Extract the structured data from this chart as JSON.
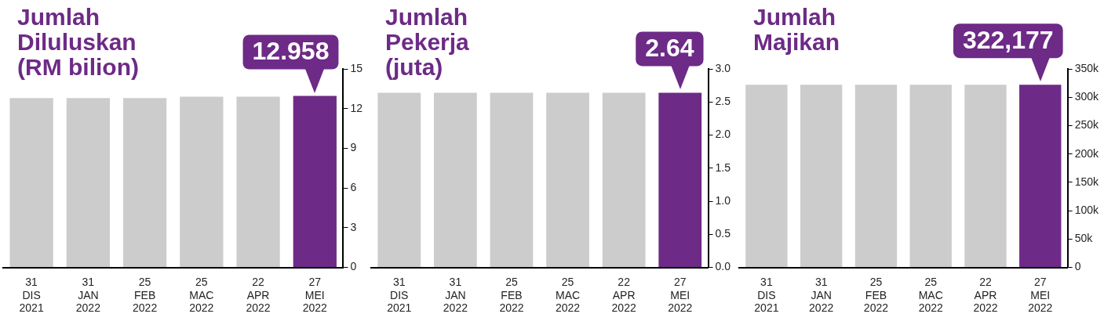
{
  "chart_data": [
    {
      "type": "bar",
      "title": "Jumlah\nDiluluskan\n(RM bilion)",
      "categories": [
        "31\nDIS\n2021",
        "31\nJAN\n2022",
        "25\nFEB\n2022",
        "25\nMAC\n2022",
        "22\nAPR\n2022",
        "27\nMEI\n2022"
      ],
      "values": [
        12.8,
        12.8,
        12.8,
        12.9,
        12.9,
        12.958
      ],
      "colors": [
        "#cccccc",
        "#cccccc",
        "#cccccc",
        "#cccccc",
        "#cccccc",
        "#6d2a86"
      ],
      "value_labels": [
        null,
        null,
        null,
        null,
        null,
        "12.958"
      ],
      "ylim": [
        0,
        15
      ],
      "yticks": [
        0,
        3,
        6,
        9,
        12,
        15
      ],
      "grid": false,
      "legend": false
    },
    {
      "type": "bar",
      "title": "Jumlah\nPekerja\n(juta)",
      "categories": [
        "31\nDIS\n2021",
        "31\nJAN\n2022",
        "25\nFEB\n2022",
        "25\nMAC\n2022",
        "22\nAPR\n2022",
        "27\nMEI\n2022"
      ],
      "values": [
        2.64,
        2.64,
        2.64,
        2.64,
        2.64,
        2.64
      ],
      "colors": [
        "#cccccc",
        "#cccccc",
        "#cccccc",
        "#cccccc",
        "#cccccc",
        "#6d2a86"
      ],
      "value_labels": [
        null,
        null,
        null,
        null,
        null,
        "2.64"
      ],
      "ylim": [
        0,
        3
      ],
      "yticks": [
        {
          "value": 0,
          "label": "0.0"
        },
        0.5,
        {
          "value": 1,
          "label": "1.0"
        },
        1.5,
        {
          "value": 2,
          "label": "2.0"
        },
        2.5,
        {
          "value": 3,
          "label": "3.0"
        }
      ],
      "grid": false,
      "legend": false
    },
    {
      "type": "bar",
      "title": "Jumlah\nMajikan",
      "categories": [
        "31\nDIS\n2021",
        "31\nJAN\n2022",
        "25\nFEB\n2022",
        "25\nMAC\n2022",
        "22\nAPR\n2022",
        "27\nMEI\n2022"
      ],
      "values": [
        322000,
        322000,
        322000,
        322000,
        322000,
        322177
      ],
      "colors": [
        "#cccccc",
        "#cccccc",
        "#cccccc",
        "#cccccc",
        "#cccccc",
        "#6d2a86"
      ],
      "value_labels": [
        null,
        null,
        null,
        null,
        null,
        "322,177"
      ],
      "ylim": [
        0,
        350000
      ],
      "yticks": [
        0,
        {
          "value": 50000,
          "label": "50k"
        },
        {
          "value": 100000,
          "label": "100k"
        },
        {
          "value": 150000,
          "label": "150k"
        },
        {
          "value": 200000,
          "label": "200k"
        },
        {
          "value": 250000,
          "label": "250k"
        },
        {
          "value": 300000,
          "label": "300k"
        },
        {
          "value": 350000,
          "label": "350k"
        }
      ],
      "grid": false,
      "legend": false
    }
  ]
}
